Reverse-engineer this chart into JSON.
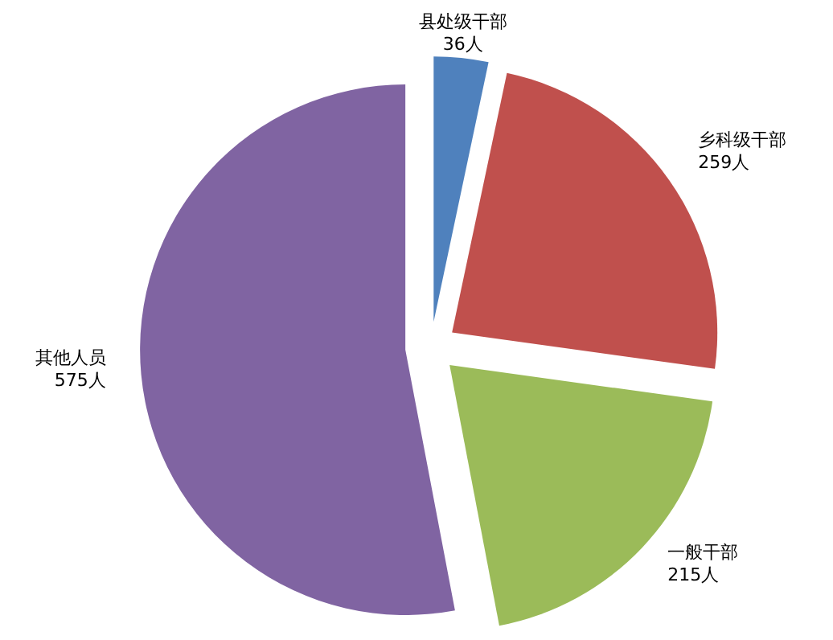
{
  "chart_data": {
    "type": "pie",
    "categories": [
      "县处级干部",
      "乡科级干部",
      "一般干部",
      "其他人员"
    ],
    "values": [
      36,
      259,
      215,
      575
    ],
    "colors": [
      "#4f81bd",
      "#c0504d",
      "#9bbb59",
      "#8064a2"
    ],
    "value_labels": [
      "36人",
      "259人",
      "215人",
      "575人"
    ]
  }
}
